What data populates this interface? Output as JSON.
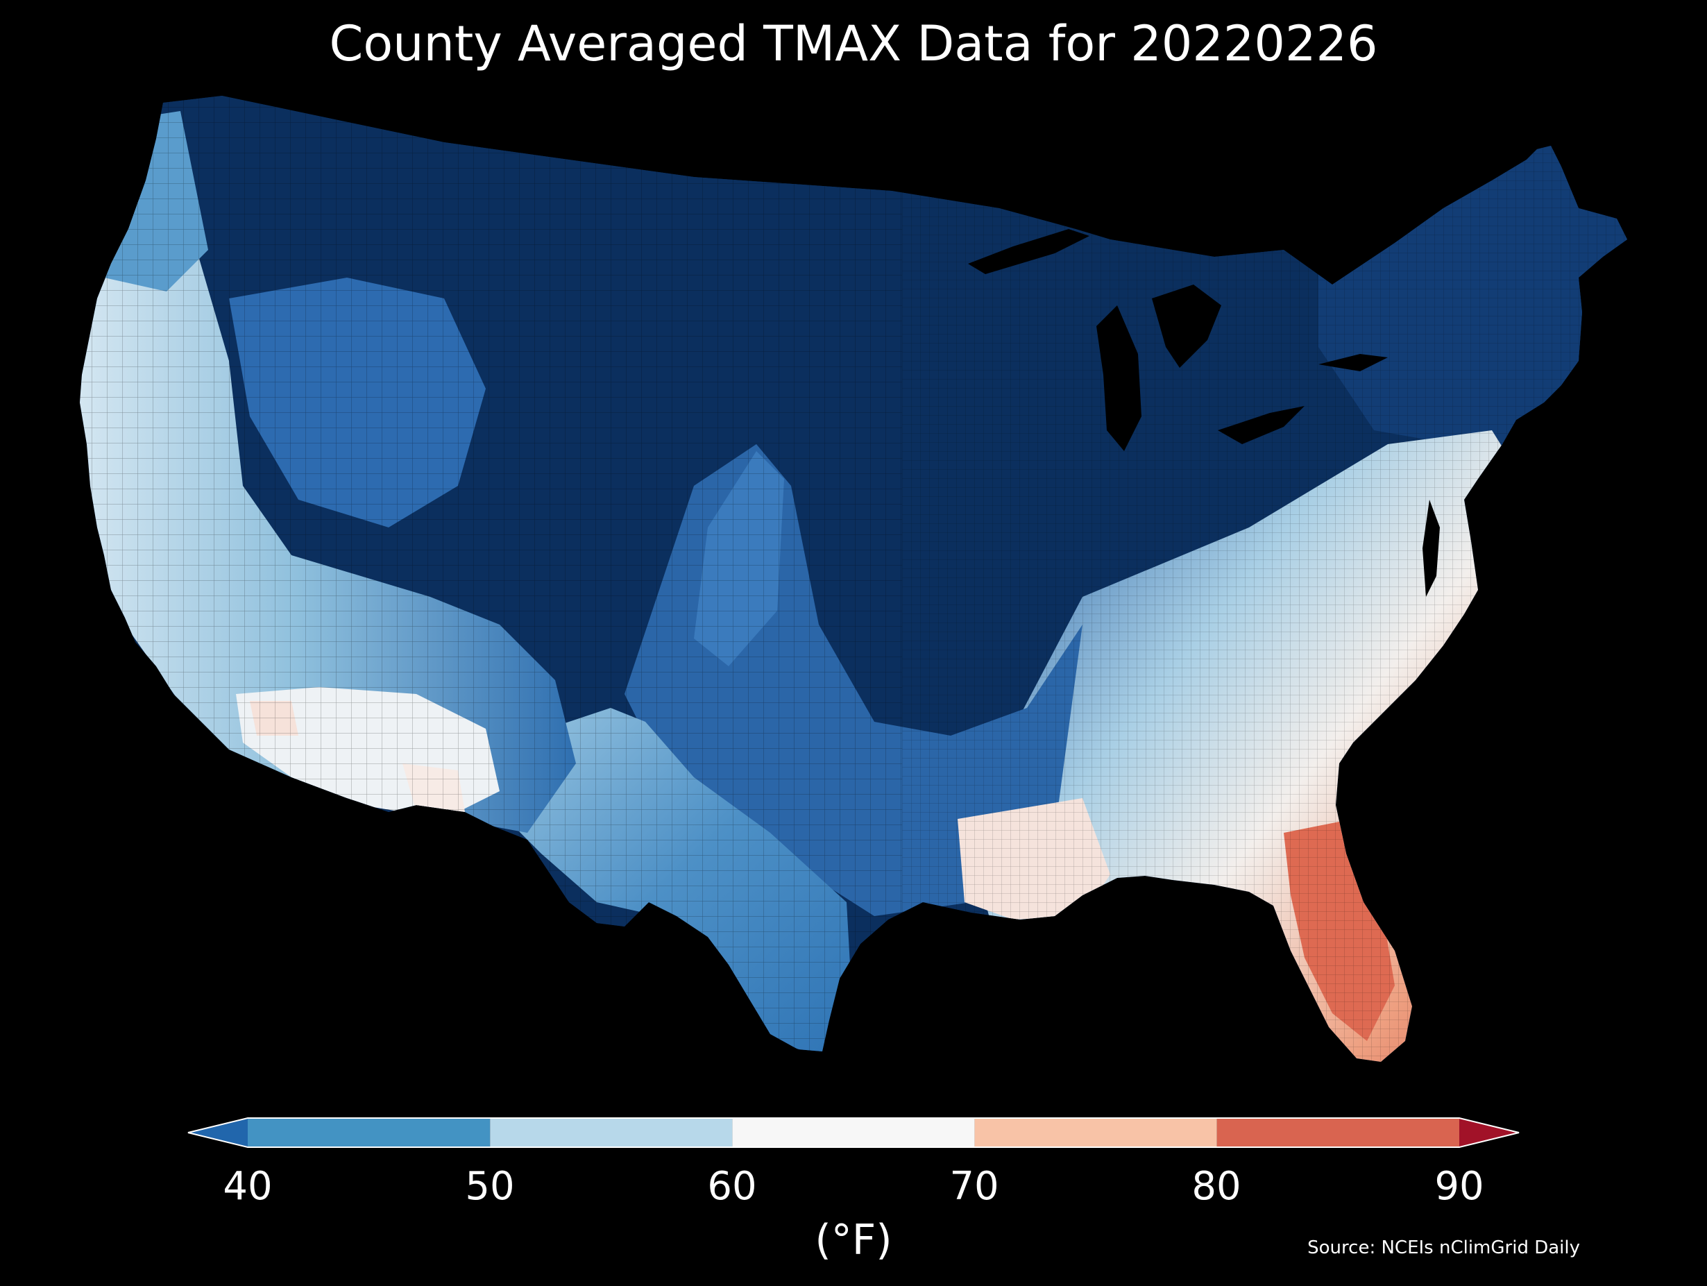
{
  "title": "County Averaged TMAX Data for 20220226",
  "colorbar": {
    "ticks": [
      "40",
      "50",
      "60",
      "70",
      "80",
      "90"
    ],
    "unit_label": "(°F)",
    "bins": [
      {
        "range": [
          null,
          40
        ],
        "color": "#2166ac"
      },
      {
        "range": [
          40,
          50
        ],
        "color": "#4393c3"
      },
      {
        "range": [
          50,
          60
        ],
        "color": "#b7d8ea"
      },
      {
        "range": [
          60,
          70
        ],
        "color": "#f7f7f7"
      },
      {
        "range": [
          70,
          80
        ],
        "color": "#f8c3a7"
      },
      {
        "range": [
          80,
          90
        ],
        "color": "#d96450"
      },
      {
        "range": [
          90,
          null
        ],
        "color": "#a11228"
      }
    ]
  },
  "source": "Source: NCEIs nClimGrid Daily",
  "map": {
    "background": "#000000",
    "scale_colors": {
      "deep_cold": "#0b2f5e",
      "cold": "#1f5aa0",
      "cool": "#4a8fc4",
      "mild": "#a9cfe5",
      "neutral": "#f3f0ee",
      "warm": "#f2a98c",
      "hot": "#d9604a"
    }
  }
}
